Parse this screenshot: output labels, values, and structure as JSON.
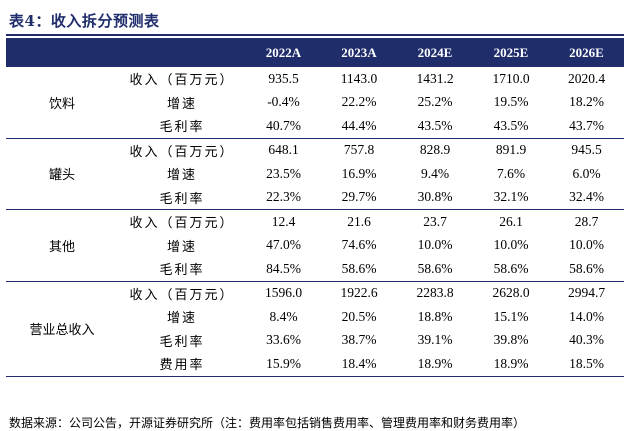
{
  "title": "表4：收入拆分预测表",
  "header": [
    "",
    "",
    "2022A",
    "2023A",
    "2024E",
    "2025E",
    "2026E"
  ],
  "groups": [
    {
      "name": "饮料",
      "rows": [
        {
          "metric": "收入（百万元）",
          "values": [
            "935.5",
            "1143.0",
            "1431.2",
            "1710.0",
            "2020.4"
          ]
        },
        {
          "metric": "增速",
          "values": [
            "-0.4%",
            "22.2%",
            "25.2%",
            "19.5%",
            "18.2%"
          ]
        },
        {
          "metric": "毛利率",
          "values": [
            "40.7%",
            "44.4%",
            "43.5%",
            "43.5%",
            "43.7%"
          ]
        }
      ]
    },
    {
      "name": "罐头",
      "rows": [
        {
          "metric": "收入（百万元）",
          "values": [
            "648.1",
            "757.8",
            "828.9",
            "891.9",
            "945.5"
          ]
        },
        {
          "metric": "增速",
          "values": [
            "23.5%",
            "16.9%",
            "9.4%",
            "7.6%",
            "6.0%"
          ]
        },
        {
          "metric": "毛利率",
          "values": [
            "22.3%",
            "29.7%",
            "30.8%",
            "32.1%",
            "32.4%"
          ]
        }
      ]
    },
    {
      "name": "其他",
      "rows": [
        {
          "metric": "收入（百万元）",
          "values": [
            "12.4",
            "21.6",
            "23.7",
            "26.1",
            "28.7"
          ]
        },
        {
          "metric": "增速",
          "values": [
            "47.0%",
            "74.6%",
            "10.0%",
            "10.0%",
            "10.0%"
          ]
        },
        {
          "metric": "毛利率",
          "values": [
            "84.5%",
            "58.6%",
            "58.6%",
            "58.6%",
            "58.6%"
          ]
        }
      ]
    },
    {
      "name": "营业总收入",
      "rows": [
        {
          "metric": "收入（百万元）",
          "values": [
            "1596.0",
            "1922.6",
            "2283.8",
            "2628.0",
            "2994.7"
          ]
        },
        {
          "metric": "增速",
          "values": [
            "8.4%",
            "20.5%",
            "18.8%",
            "15.1%",
            "14.0%"
          ]
        },
        {
          "metric": "毛利率",
          "values": [
            "33.6%",
            "38.7%",
            "39.1%",
            "39.8%",
            "40.3%"
          ]
        },
        {
          "metric": "费用率",
          "values": [
            "15.9%",
            "18.4%",
            "18.9%",
            "18.9%",
            "18.5%"
          ]
        }
      ]
    }
  ],
  "source_note": "数据来源：公司公告，开源证券研究所（注：费用率包括销售费用率、管理费用率和财务费用率）",
  "colors": {
    "header_bg": "#1f2d6b",
    "rule": "#1f2d6b"
  }
}
